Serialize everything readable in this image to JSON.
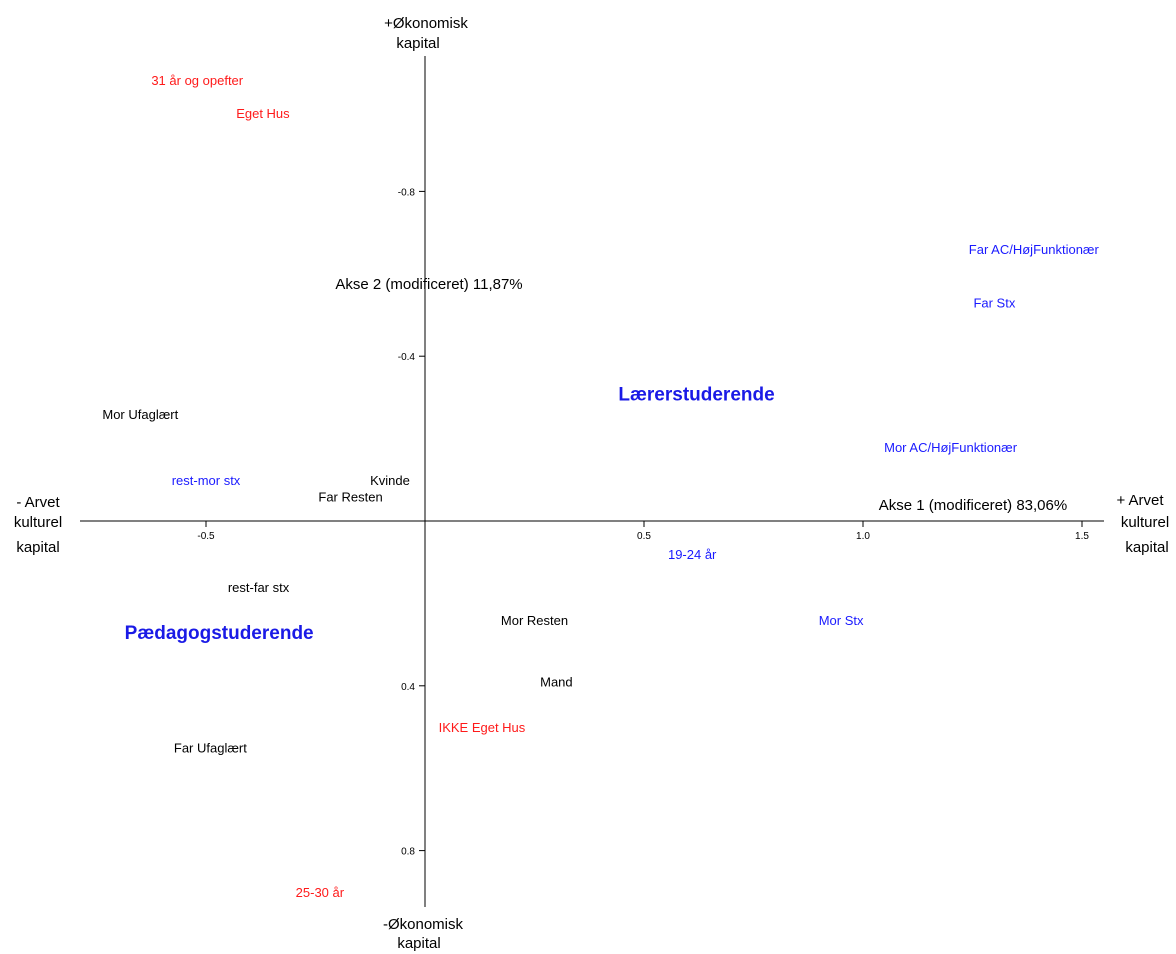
{
  "colors": {
    "black": "#000000",
    "blue": "#1a1aff",
    "red": "#ff1a1a",
    "group": "#1a1ae6"
  },
  "chart_data": {
    "type": "scatter",
    "x_range": [
      -0.79,
      1.55
    ],
    "y_range": [
      -1.1,
      1.0
    ],
    "y_inverted": true,
    "x_ticks": [
      {
        "value": -0.5,
        "label": "-0.5"
      },
      {
        "value": 0.5,
        "label": "0.5"
      },
      {
        "value": 1.0,
        "label": "1.0"
      },
      {
        "value": 1.5,
        "label": "1.5"
      }
    ],
    "y_ticks": [
      {
        "value": -0.8,
        "label": "-0.8"
      },
      {
        "value": -0.4,
        "label": "-0.4"
      },
      {
        "value": 0.4,
        "label": "0.4"
      },
      {
        "value": 0.8,
        "label": "0.8"
      }
    ],
    "x_axis_left": [
      "- Arvet",
      "kulturel",
      "kapital"
    ],
    "x_axis_right": [
      "+ Arvet",
      "kulturel",
      "kapital"
    ],
    "y_axis_top": [
      "+Økonomisk",
      "kapital"
    ],
    "y_axis_bottom": [
      "-Økonomisk",
      "kapital"
    ],
    "x_axis_name": "Akse 1 (modificeret) 83,06%",
    "y_axis_name": "Akse 2 (modificeret) 11,87%",
    "group_labels": [
      {
        "label": "Lærerstuderende",
        "x": 0.62,
        "y": -0.31
      },
      {
        "label": "Pædagogstuderende",
        "x": -0.47,
        "y": 0.27
      }
    ],
    "points": [
      {
        "label": "31 år og opefter",
        "x": -0.52,
        "y": -1.07,
        "color": "red"
      },
      {
        "label": "Eget Hus",
        "x": -0.37,
        "y": -0.99,
        "color": "red"
      },
      {
        "label": "Far AC/HøjFunktionær",
        "x": 1.39,
        "y": -0.66,
        "color": "blue"
      },
      {
        "label": "Far Stx",
        "x": 1.3,
        "y": -0.53,
        "color": "blue"
      },
      {
        "label": "Mor Ufaglært",
        "x": -0.65,
        "y": -0.26,
        "color": "black"
      },
      {
        "label": "Mor AC/HøjFunktionær",
        "x": 1.2,
        "y": -0.18,
        "color": "blue"
      },
      {
        "label": "rest-mor stx",
        "x": -0.5,
        "y": -0.1,
        "color": "blue"
      },
      {
        "label": "Kvinde",
        "x": -0.08,
        "y": -0.1,
        "color": "black"
      },
      {
        "label": "Far Resten",
        "x": -0.17,
        "y": -0.06,
        "color": "black"
      },
      {
        "label": "19-24 år",
        "x": 0.61,
        "y": 0.08,
        "color": "blue"
      },
      {
        "label": "rest-far stx",
        "x": -0.38,
        "y": 0.16,
        "color": "black"
      },
      {
        "label": "Mor Resten",
        "x": 0.25,
        "y": 0.24,
        "color": "black"
      },
      {
        "label": "Mor Stx",
        "x": 0.95,
        "y": 0.24,
        "color": "blue"
      },
      {
        "label": "Mand",
        "x": 0.3,
        "y": 0.39,
        "color": "black"
      },
      {
        "label": "IKKE Eget Hus",
        "x": 0.13,
        "y": 0.5,
        "color": "red"
      },
      {
        "label": "Far Ufaglært",
        "x": -0.49,
        "y": 0.55,
        "color": "black"
      },
      {
        "label": "25-30 år",
        "x": -0.24,
        "y": 0.9,
        "color": "red"
      }
    ]
  }
}
